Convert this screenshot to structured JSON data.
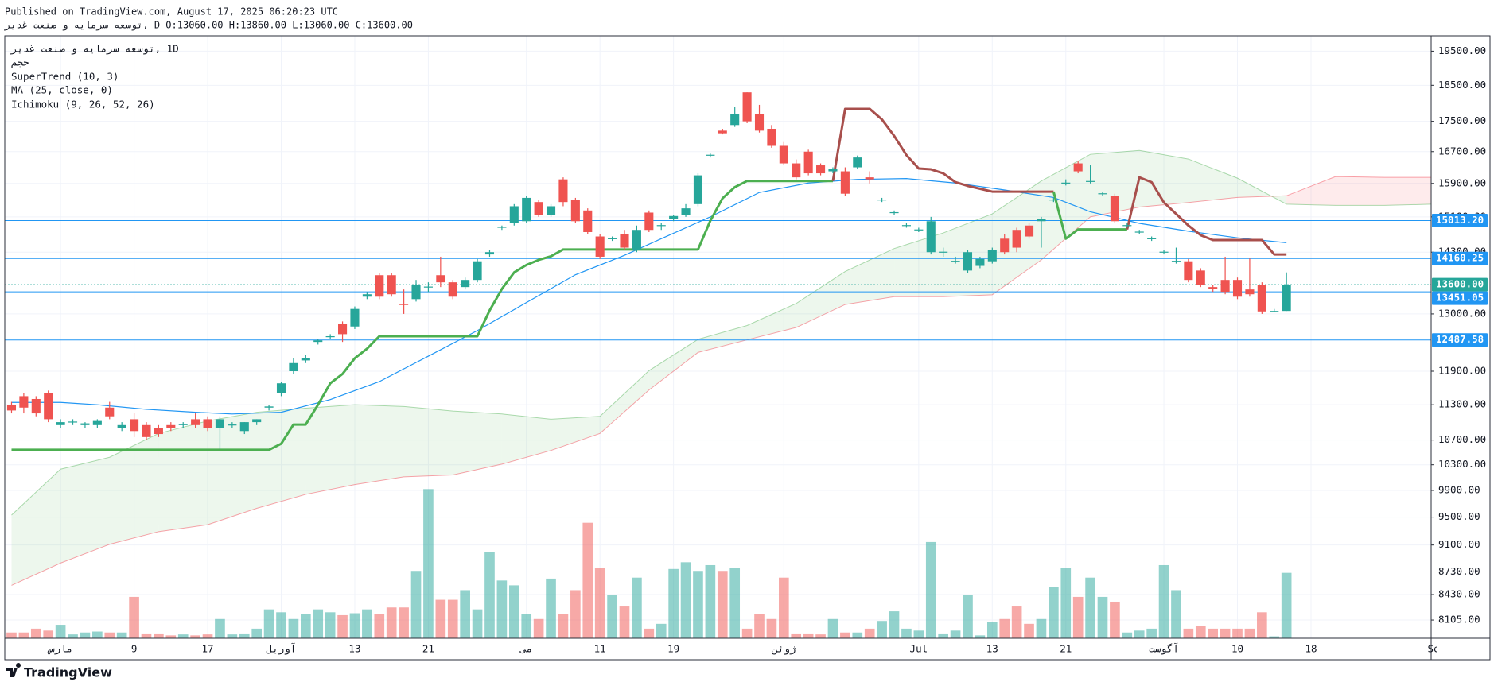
{
  "header": {
    "published": "Published on TradingView.com, August 17, 2025 06:20:23 UTC",
    "symbol_line": "ریدغ تعنص و هیامرس هعسوت, D O:13060.00 H:13860.00 L:13060.00 C:13600.00"
  },
  "chart_data": {
    "type": "candlestick",
    "legend": [
      "ریدغ تعنص و هیامرس هعسوت, 1D",
      "مجح",
      "SuperTrend (10, 3)",
      "MA (25, close, 0)",
      "Ichimoku (9, 26, 52, 26)"
    ],
    "x": [
      0,
      1,
      2,
      3,
      4,
      5,
      6,
      7,
      8,
      9,
      10,
      11,
      12,
      13,
      14,
      15,
      16,
      17,
      18,
      19,
      20,
      21,
      22,
      23,
      24,
      25,
      26,
      27,
      28,
      29,
      30,
      31,
      32,
      33,
      34,
      35,
      36,
      37,
      38,
      39,
      40,
      41,
      42,
      43,
      44,
      45,
      46,
      47,
      48,
      49,
      50,
      51,
      52,
      53,
      54,
      55,
      56,
      57,
      58,
      59,
      60,
      61,
      62,
      63,
      64,
      65,
      66,
      67,
      68,
      69,
      70,
      71,
      72,
      73,
      74,
      75,
      76,
      77,
      78,
      79,
      80,
      81,
      82,
      83,
      84,
      85,
      86,
      87,
      88,
      89,
      90,
      91,
      92,
      93,
      94,
      95,
      96,
      97,
      98,
      99,
      100,
      101,
      102,
      103,
      104
    ],
    "open": [
      11300,
      11450,
      11400,
      11500,
      10950,
      11000,
      10950,
      10950,
      11250,
      10900,
      11050,
      10950,
      10900,
      10950,
      10950,
      11050,
      11050,
      10900,
      10950,
      10850,
      11000,
      11250,
      11500,
      11900,
      12100,
      12450,
      12550,
      12800,
      12750,
      13350,
      13800,
      13800,
      13200,
      13300,
      13550,
      13800,
      13650,
      13550,
      13700,
      14250,
      14850,
      14950,
      15000,
      15450,
      15150,
      16000,
      15500,
      15250,
      14650,
      14600,
      14700,
      14350,
      15200,
      14900,
      15050,
      15150,
      15400,
      16600,
      17250,
      17400,
      18300,
      17700,
      17300,
      16850,
      16400,
      16700,
      16350,
      16200,
      16200,
      16300,
      16050,
      15500,
      15200,
      14900,
      14800,
      14300,
      14300,
      14100,
      13900,
      14000,
      14100,
      14600,
      14800,
      14900,
      15000,
      15500,
      15900,
      16400,
      15950,
      15650,
      15600,
      14900,
      14750,
      14600,
      14300,
      14100,
      14100,
      13900,
      13550,
      13700,
      13700,
      13500,
      13600,
      13060,
      13060
    ],
    "high": [
      11350,
      11500,
      11450,
      11550,
      11050,
      11050,
      11000,
      11050,
      11350,
      11000,
      11150,
      11000,
      10950,
      11000,
      11000,
      11150,
      11100,
      11100,
      11000,
      11000,
      11050,
      11300,
      11700,
      12150,
      12200,
      12500,
      12600,
      12850,
      13150,
      13450,
      13850,
      13850,
      13500,
      13700,
      13650,
      14200,
      13700,
      13750,
      14150,
      14350,
      14900,
      15400,
      15600,
      15500,
      15400,
      16050,
      15550,
      15300,
      14700,
      14650,
      14800,
      14900,
      15250,
      14950,
      15150,
      15400,
      16150,
      16650,
      17300,
      17900,
      18300,
      17950,
      17400,
      16950,
      16500,
      16750,
      16400,
      16300,
      16300,
      16600,
      16200,
      15550,
      15250,
      14950,
      14850,
      15100,
      14400,
      14200,
      14350,
      14200,
      14400,
      14700,
      14850,
      14950,
      15100,
      15550,
      16000,
      16450,
      16350,
      15700,
      15650,
      14950,
      14800,
      14650,
      14350,
      14400,
      14150,
      13950,
      13600,
      14200,
      13750,
      14160,
      13650,
      13100,
      13860
    ],
    "low": [
      11150,
      11150,
      11100,
      11000,
      10900,
      10950,
      10900,
      10900,
      11050,
      10850,
      10750,
      10700,
      10750,
      10850,
      10900,
      10900,
      10850,
      10550,
      10900,
      10800,
      10950,
      11200,
      11450,
      11850,
      12050,
      12400,
      12500,
      12450,
      12700,
      13300,
      13300,
      13350,
      13000,
      13250,
      13450,
      13550,
      13300,
      13500,
      13650,
      14200,
      14800,
      14900,
      14950,
      15100,
      15100,
      15350,
      14950,
      14700,
      14150,
      14550,
      14350,
      14300,
      14750,
      14800,
      15000,
      15100,
      15350,
      16550,
      17150,
      17350,
      17450,
      17200,
      16800,
      16350,
      16000,
      16100,
      16100,
      16150,
      15600,
      16250,
      15900,
      15450,
      15150,
      14850,
      14750,
      14250,
      14200,
      14050,
      13850,
      13950,
      14050,
      14250,
      14300,
      14600,
      14400,
      15450,
      15850,
      16150,
      15900,
      15600,
      14950,
      14850,
      14700,
      14550,
      14250,
      14050,
      13650,
      13550,
      13450,
      13400,
      13300,
      13350,
      13000,
      13050,
      13060
    ],
    "close": [
      11200,
      11250,
      11150,
      11050,
      11000,
      11010,
      10980,
      11020,
      11100,
      10950,
      10850,
      10750,
      10800,
      10900,
      10970,
      10950,
      10900,
      11050,
      10960,
      11000,
      11050,
      11270,
      11680,
      12050,
      12150,
      12480,
      12560,
      12600,
      13100,
      13400,
      13350,
      13400,
      13180,
      13600,
      13560,
      13650,
      13350,
      13700,
      14100,
      14300,
      14870,
      15350,
      15550,
      15150,
      15350,
      15450,
      15000,
      14750,
      14200,
      14610,
      14400,
      14800,
      14800,
      14910,
      15120,
      15300,
      16100,
      16620,
      17180,
      17700,
      17500,
      17250,
      16850,
      16400,
      16050,
      16150,
      16150,
      16250,
      15650,
      16550,
      16000,
      15510,
      15210,
      14910,
      14810,
      15000,
      14310,
      14110,
      14300,
      14150,
      14350,
      14300,
      14400,
      14650,
      15050,
      15510,
      15920,
      16200,
      15960,
      15660,
      15000,
      14910,
      14760,
      14610,
      14310,
      14110,
      13700,
      13600,
      13510,
      13450,
      13350,
      13400,
      13050,
      13060,
      13600
    ],
    "volume": [
      6,
      6,
      10,
      8,
      14,
      4,
      6,
      7,
      6,
      6,
      43,
      5,
      5,
      3,
      4,
      3,
      4,
      20,
      4,
      5,
      10,
      30,
      27,
      20,
      25,
      30,
      27,
      24,
      26,
      30,
      25,
      32,
      32,
      70,
      155,
      40,
      40,
      50,
      30,
      90,
      60,
      55,
      25,
      20,
      62,
      25,
      50,
      120,
      73,
      45,
      33,
      63,
      10,
      15,
      72,
      79,
      70,
      76,
      70,
      73,
      10,
      25,
      20,
      63,
      5,
      5,
      4,
      20,
      6,
      6,
      10,
      18,
      28,
      10,
      8,
      100,
      5,
      8,
      45,
      3,
      17,
      20,
      33,
      15,
      20,
      53,
      73,
      43,
      63,
      43,
      38,
      6,
      8,
      10,
      76,
      50,
      10,
      13,
      10,
      10,
      10,
      10,
      27,
      2,
      68
    ],
    "up_color": "#26a69a",
    "down_color": "#ef5350",
    "log_scale": true,
    "grid": true,
    "xlim": [
      -0.55,
      115.8
    ],
    "xticks": [
      {
        "value": 4,
        "label": "مارس"
      },
      {
        "value": 10,
        "label": "9"
      },
      {
        "value": 16,
        "label": "17"
      },
      {
        "value": 22,
        "label": "آوریل"
      },
      {
        "value": 28,
        "label": "13"
      },
      {
        "value": 34,
        "label": "21"
      },
      {
        "value": 42,
        "label": "می"
      },
      {
        "value": 48,
        "label": "11"
      },
      {
        "value": 54,
        "label": "19"
      },
      {
        "value": 63,
        "label": "ژوئن"
      },
      {
        "value": 74,
        "label": "Jul"
      },
      {
        "value": 80,
        "label": "13"
      },
      {
        "value": 86,
        "label": "21"
      },
      {
        "value": 94,
        "label": "آگوست"
      },
      {
        "value": 100,
        "label": "10"
      },
      {
        "value": 106,
        "label": "18"
      },
      {
        "value": 116,
        "label": "Se"
      }
    ],
    "ylim": [
      7880,
      19970
    ],
    "yticks": [
      {
        "value": 19500,
        "label": "19500.00"
      },
      {
        "value": 18500,
        "label": "18500.00"
      },
      {
        "value": 17500,
        "label": "17500.00"
      },
      {
        "value": 16700,
        "label": "16700.00"
      },
      {
        "value": 15900,
        "label": "15900.00"
      },
      {
        "value": 15100,
        "label": "15100.00"
      },
      {
        "value": 14300,
        "label": "14300.00"
      },
      {
        "value": 13000,
        "label": "13000.00"
      },
      {
        "value": 11900,
        "label": "11900.00"
      },
      {
        "value": 11300,
        "label": "11300.00"
      },
      {
        "value": 10700,
        "label": "10700.00"
      },
      {
        "value": 10300,
        "label": "10300.00"
      },
      {
        "value": 9900,
        "label": "9900.00"
      },
      {
        "value": 9500,
        "label": "9500.00"
      },
      {
        "value": 9100,
        "label": "9100.00"
      },
      {
        "value": 8730,
        "label": "8730.00"
      },
      {
        "value": 8430,
        "label": "8430.00"
      },
      {
        "value": 8105,
        "label": "8105.00"
      }
    ],
    "volume_lim": [
      0,
      626
    ],
    "supertrend": [
      {
        "color": "#4caf50",
        "x": [
          0,
          21,
          22,
          23,
          24,
          25,
          26,
          27,
          28,
          29,
          30,
          38,
          39,
          40,
          41,
          42,
          43,
          44,
          45,
          56,
          57,
          58,
          59,
          60,
          67
        ],
        "values": [
          10540,
          10540,
          10640,
          10960,
          10960,
          11300,
          11680,
          11850,
          12140,
          12320,
          12560,
          12560,
          13070,
          13510,
          13860,
          14020,
          14130,
          14210,
          14360,
          14360,
          15010,
          15540,
          15810,
          15960,
          15960
        ]
      },
      {
        "color": "#a84f4c",
        "x": [
          67,
          68,
          70,
          71,
          72,
          73,
          74,
          75,
          76,
          77,
          78,
          80,
          85
        ],
        "values": [
          15960,
          17840,
          17840,
          17550,
          17110,
          16610,
          16270,
          16250,
          16150,
          15930,
          15840,
          15700,
          15700
        ]
      },
      {
        "color": "#4caf50",
        "x": [
          85,
          86,
          87,
          91
        ],
        "values": [
          15700,
          14600,
          14810,
          14810
        ]
      },
      {
        "color": "#a84f4c",
        "x": [
          91,
          92,
          93,
          94,
          95,
          96,
          97,
          98,
          102,
          103,
          104
        ],
        "values": [
          14810,
          16050,
          15930,
          15440,
          15170,
          14900,
          14680,
          14570,
          14570,
          14250,
          14250
        ]
      }
    ],
    "ma": {
      "color": "#2196f3",
      "x": [
        0,
        4,
        7,
        11,
        15,
        18,
        22,
        26,
        30,
        34,
        38,
        42,
        46,
        50,
        53,
        57,
        61,
        65,
        69,
        73,
        77,
        81,
        85,
        88,
        92,
        96,
        100,
        104
      ],
      "values": [
        11340,
        11340,
        11300,
        11220,
        11170,
        11140,
        11170,
        11390,
        11710,
        12180,
        12670,
        13230,
        13810,
        14230,
        14600,
        15100,
        15680,
        15910,
        16000,
        16020,
        15910,
        15740,
        15560,
        15220,
        14950,
        14770,
        14620,
        14510
      ]
    },
    "ichimoku": {
      "up_color": "#4caf50",
      "down_color": "#f23645",
      "x": [
        0,
        4,
        8,
        12,
        16,
        20,
        24,
        28,
        32,
        36,
        40,
        44,
        48,
        52,
        56,
        60,
        64,
        68,
        72,
        76,
        80,
        84,
        88,
        92,
        96,
        100,
        104,
        108,
        112,
        116
      ],
      "span_a": [
        9530,
        10230,
        10420,
        10810,
        11020,
        11170,
        11240,
        11300,
        11270,
        11190,
        11140,
        11050,
        11100,
        11910,
        12500,
        12770,
        13210,
        13880,
        14380,
        14730,
        15170,
        15960,
        16630,
        16730,
        16510,
        16030,
        15400,
        15370,
        15370,
        15400
      ],
      "span_b": [
        8550,
        8850,
        9110,
        9290,
        9390,
        9630,
        9840,
        9990,
        10110,
        10140,
        10310,
        10530,
        10810,
        11560,
        12250,
        12490,
        12730,
        13190,
        13350,
        13350,
        13390,
        14130,
        15100,
        15330,
        15440,
        15560,
        15600,
        16070,
        16050,
        16050
      ]
    },
    "price_lines": [
      {
        "value": 15013.2,
        "label": "15013.20",
        "color": "#2196f3"
      },
      {
        "value": 14160.25,
        "label": "14160.25",
        "color": "#2196f3"
      },
      {
        "value": 13600,
        "label": "13600.00",
        "color": "#26a69a",
        "dashed": true
      },
      {
        "value": 13451.05,
        "label": "13451.05",
        "color": "#2196f3"
      },
      {
        "value": 12487.58,
        "label": "12487.58",
        "color": "#2196f3"
      }
    ]
  },
  "footer": {
    "logo": "TradingView"
  }
}
